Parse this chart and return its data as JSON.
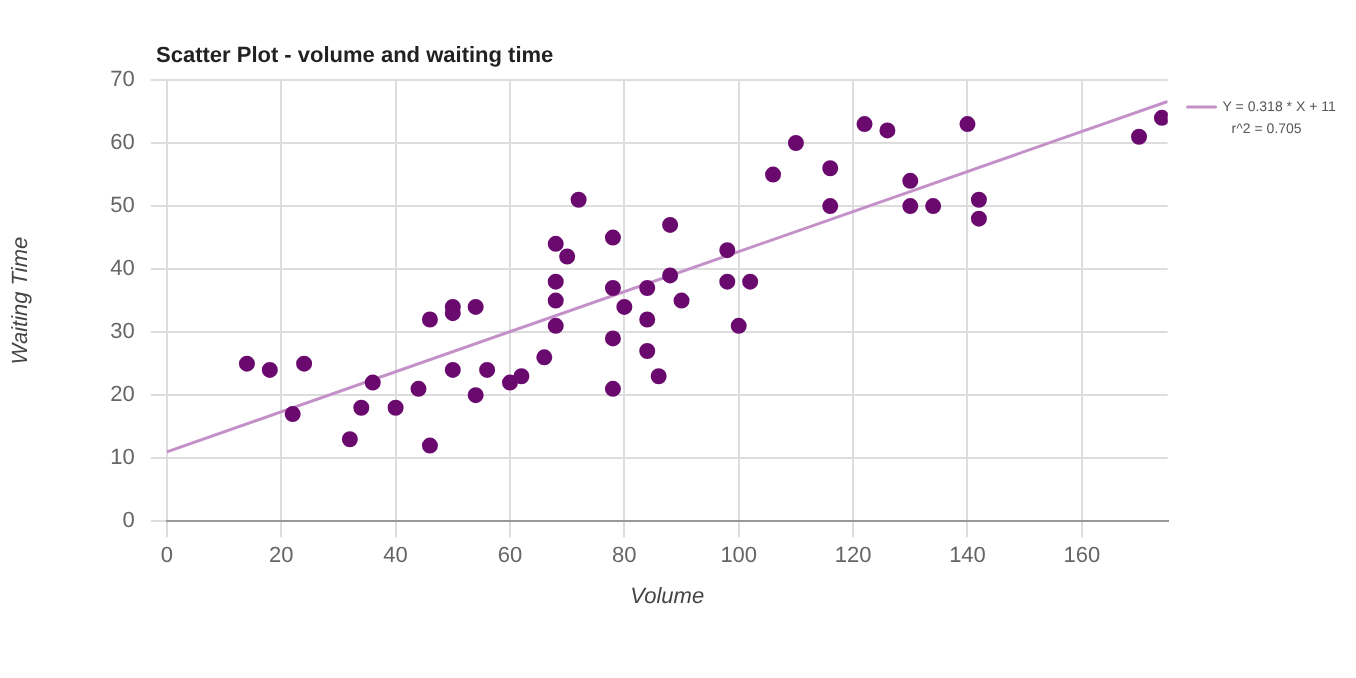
{
  "chart_data": {
    "type": "scatter",
    "title": "Scatter Plot - volume and waiting time",
    "xlabel": "Volume",
    "ylabel": "Waiting Time",
    "xlim": [
      0,
      175
    ],
    "xticks": [
      0,
      20,
      40,
      60,
      80,
      100,
      120,
      140,
      160
    ],
    "ylim": [
      0,
      70
    ],
    "yticks": [
      0,
      10,
      20,
      30,
      40,
      50,
      60,
      70
    ],
    "grid": true,
    "legend": "top right",
    "marker": "circle",
    "annotations": [
      "r^2 = 0.705"
    ],
    "series": [
      {
        "color": "#6a0a6e",
        "x": [
          14,
          18,
          22,
          24,
          32,
          34,
          36,
          40,
          44,
          46,
          46,
          50,
          50,
          50,
          54,
          54,
          56,
          60,
          62,
          66,
          68,
          68,
          68,
          68,
          70,
          72,
          78,
          78,
          78,
          78,
          80,
          84,
          84,
          84,
          86,
          88,
          88,
          90,
          98,
          98,
          100,
          102,
          106,
          110,
          116,
          116,
          122,
          126,
          130,
          130,
          134,
          140,
          142,
          142,
          170,
          174
        ],
        "values": [
          25,
          24,
          17,
          25,
          13,
          18,
          22,
          18,
          21,
          32,
          12,
          34,
          33,
          24,
          34,
          20,
          24,
          22,
          23,
          26,
          44,
          38,
          35,
          31,
          42,
          51,
          45,
          37,
          29,
          21,
          34,
          37,
          32,
          27,
          23,
          47,
          39,
          35,
          43,
          38,
          31,
          38,
          55,
          60,
          56,
          50,
          63,
          62,
          54,
          50,
          50,
          63,
          51,
          48,
          61,
          64
        ]
      },
      {
        "type": "line",
        "name": "Y = 0.318 * X + 11",
        "color": "#c490c8",
        "x": [
          0,
          175
        ],
        "values": [
          11,
          66.6
        ],
        "marker": "none",
        "line_style": "solid"
      }
    ]
  }
}
